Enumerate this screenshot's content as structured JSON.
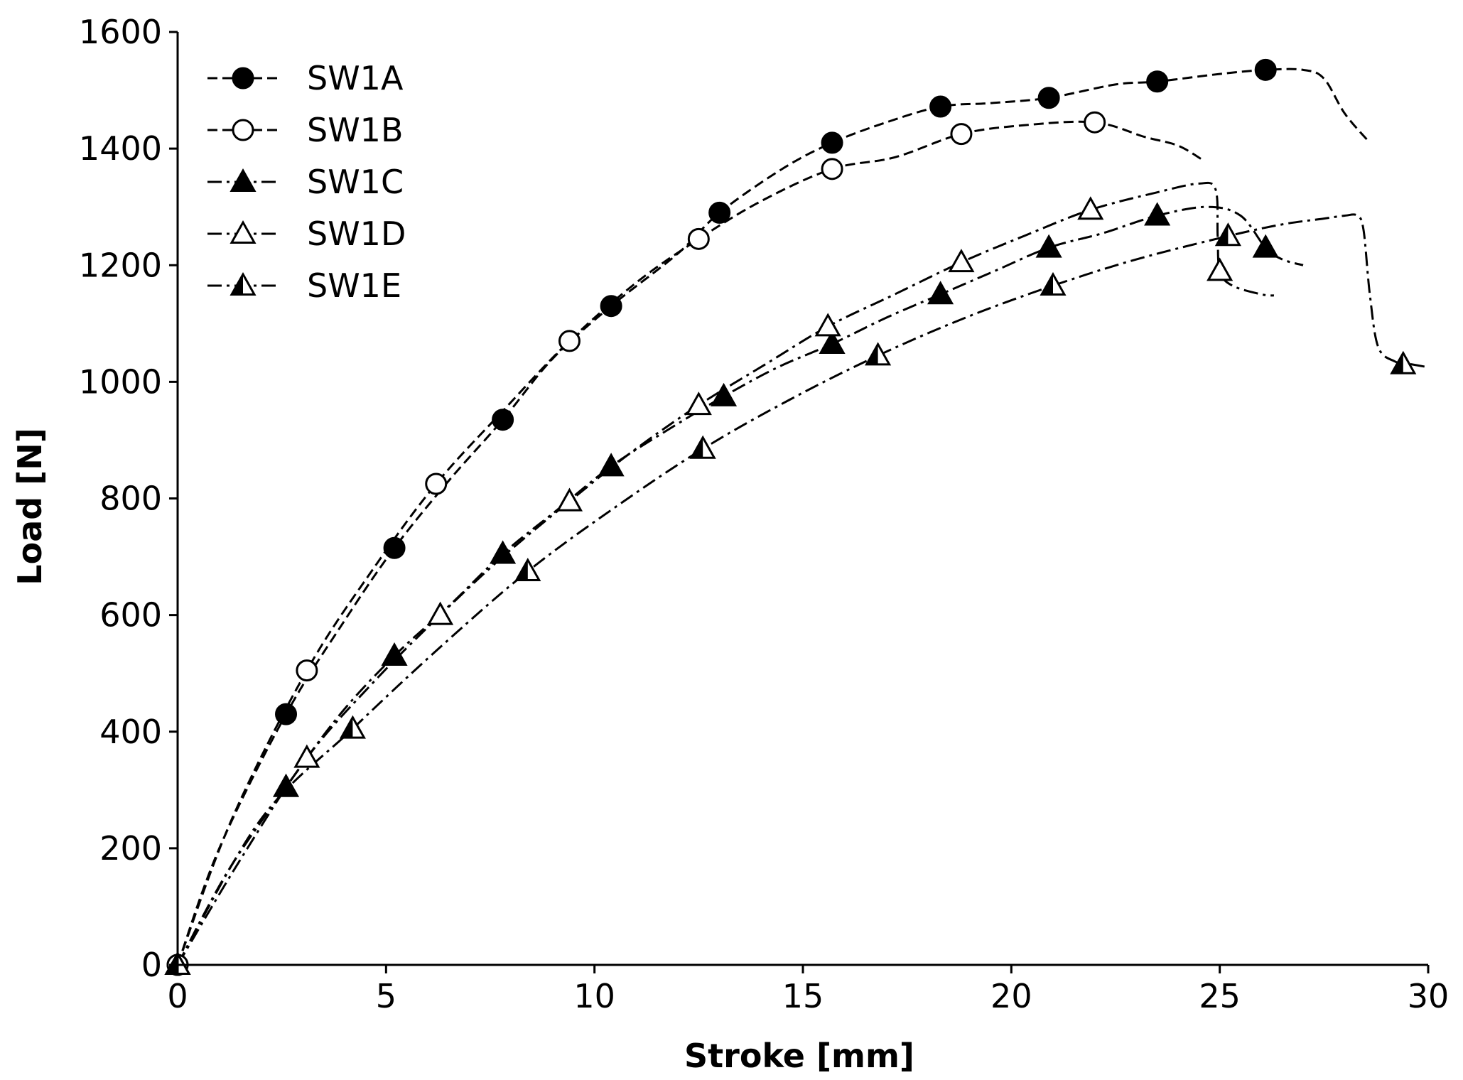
{
  "chart_data": {
    "type": "line",
    "title": "",
    "xlabel": "Stroke [mm]",
    "ylabel": "Load [N]",
    "xlim": [
      0,
      30
    ],
    "ylim": [
      0,
      1600
    ],
    "xticks": [
      0,
      5,
      10,
      15,
      20,
      25,
      30
    ],
    "yticks": [
      0,
      200,
      400,
      600,
      800,
      1000,
      1200,
      1400,
      1600
    ],
    "grid": false,
    "legend_position": "top-left",
    "series": [
      {
        "name": "SW1A",
        "marker": "filled-circle",
        "line_style": "dashed",
        "curve": [
          [
            0,
            0
          ],
          [
            1,
            200
          ],
          [
            2.6,
            430
          ],
          [
            4,
            590
          ],
          [
            5.2,
            715
          ],
          [
            6.5,
            830
          ],
          [
            7.8,
            935
          ],
          [
            9,
            1040
          ],
          [
            10.4,
            1130
          ],
          [
            12,
            1220
          ],
          [
            13,
            1290
          ],
          [
            14.5,
            1365
          ],
          [
            15.7,
            1410
          ],
          [
            17,
            1445
          ],
          [
            18.3,
            1472
          ],
          [
            19.5,
            1478
          ],
          [
            20.9,
            1487
          ],
          [
            22.5,
            1510
          ],
          [
            23.5,
            1515
          ],
          [
            25,
            1528
          ],
          [
            26.1,
            1535
          ],
          [
            27,
            1535
          ],
          [
            27.5,
            1520
          ],
          [
            28,
            1460
          ],
          [
            28.6,
            1410
          ]
        ],
        "markers": [
          [
            0,
            0
          ],
          [
            2.6,
            430
          ],
          [
            5.2,
            715
          ],
          [
            7.8,
            935
          ],
          [
            10.4,
            1130
          ],
          [
            13,
            1290
          ],
          [
            15.7,
            1410
          ],
          [
            18.3,
            1472
          ],
          [
            20.9,
            1487
          ],
          [
            23.5,
            1515
          ],
          [
            26.1,
            1535
          ]
        ]
      },
      {
        "name": "SW1B",
        "marker": "open-circle",
        "line_style": "dashed",
        "curve": [
          [
            0,
            0
          ],
          [
            1.3,
            250
          ],
          [
            3.1,
            505
          ],
          [
            4.7,
            680
          ],
          [
            6.2,
            825
          ],
          [
            7.8,
            950
          ],
          [
            9.4,
            1070
          ],
          [
            11,
            1170
          ],
          [
            12.5,
            1245
          ],
          [
            14,
            1310
          ],
          [
            15.7,
            1365
          ],
          [
            17.2,
            1385
          ],
          [
            18.8,
            1425
          ],
          [
            20.3,
            1440
          ],
          [
            22,
            1445
          ],
          [
            23.2,
            1420
          ],
          [
            24,
            1405
          ],
          [
            24.6,
            1380
          ]
        ],
        "markers": [
          [
            0,
            0
          ],
          [
            3.1,
            505
          ],
          [
            6.2,
            825
          ],
          [
            9.4,
            1070
          ],
          [
            12.5,
            1245
          ],
          [
            15.7,
            1365
          ],
          [
            18.8,
            1425
          ],
          [
            22,
            1445
          ]
        ]
      },
      {
        "name": "SW1C",
        "marker": "filled-triangle",
        "line_style": "dashdot",
        "curve": [
          [
            0,
            0
          ],
          [
            1.2,
            160
          ],
          [
            2.6,
            305
          ],
          [
            3.9,
            430
          ],
          [
            5.2,
            530
          ],
          [
            6.5,
            615
          ],
          [
            7.8,
            705
          ],
          [
            9.1,
            780
          ],
          [
            10.4,
            855
          ],
          [
            11.7,
            915
          ],
          [
            13.1,
            975
          ],
          [
            14.4,
            1025
          ],
          [
            15.7,
            1065
          ],
          [
            17,
            1110
          ],
          [
            18.3,
            1150
          ],
          [
            19.6,
            1190
          ],
          [
            20.9,
            1230
          ],
          [
            22.2,
            1255
          ],
          [
            23.5,
            1285
          ],
          [
            24.7,
            1300
          ],
          [
            25.5,
            1285
          ],
          [
            26.1,
            1230
          ],
          [
            26.5,
            1210
          ],
          [
            27,
            1200
          ]
        ],
        "markers": [
          [
            0,
            0
          ],
          [
            2.6,
            305
          ],
          [
            5.2,
            530
          ],
          [
            7.8,
            705
          ],
          [
            10.4,
            855
          ],
          [
            13.1,
            975
          ],
          [
            15.7,
            1065
          ],
          [
            18.3,
            1150
          ],
          [
            20.9,
            1230
          ],
          [
            23.5,
            1285
          ],
          [
            26.1,
            1230
          ]
        ]
      },
      {
        "name": "SW1D",
        "marker": "open-triangle",
        "line_style": "dashdot",
        "curve": [
          [
            0,
            0
          ],
          [
            1.5,
            180
          ],
          [
            3.1,
            355
          ],
          [
            4.7,
            485
          ],
          [
            6.3,
            600
          ],
          [
            7.8,
            700
          ],
          [
            9.4,
            795
          ],
          [
            10.9,
            880
          ],
          [
            12.5,
            960
          ],
          [
            14.1,
            1030
          ],
          [
            15.6,
            1095
          ],
          [
            17.2,
            1150
          ],
          [
            18.8,
            1205
          ],
          [
            20.3,
            1250
          ],
          [
            21.9,
            1295
          ],
          [
            23.5,
            1325
          ],
          [
            24.5,
            1340
          ],
          [
            24.9,
            1330
          ],
          [
            24.95,
            1250
          ],
          [
            25,
            1190
          ],
          [
            25.3,
            1165
          ],
          [
            26,
            1150
          ],
          [
            26.3,
            1148
          ]
        ],
        "markers": [
          [
            0,
            0
          ],
          [
            3.1,
            355
          ],
          [
            6.3,
            600
          ],
          [
            9.4,
            795
          ],
          [
            12.5,
            960
          ],
          [
            15.6,
            1095
          ],
          [
            18.8,
            1205
          ],
          [
            21.9,
            1295
          ],
          [
            25,
            1190
          ]
        ]
      },
      {
        "name": "SW1E",
        "marker": "half-filled-triangle",
        "line_style": "dashdot",
        "curve": [
          [
            0,
            0
          ],
          [
            2,
            250
          ],
          [
            4.2,
            405
          ],
          [
            6.3,
            545
          ],
          [
            8.4,
            675
          ],
          [
            10.5,
            785
          ],
          [
            12.6,
            885
          ],
          [
            14.7,
            970
          ],
          [
            16.8,
            1045
          ],
          [
            18.9,
            1110
          ],
          [
            21,
            1165
          ],
          [
            23,
            1210
          ],
          [
            25.2,
            1250
          ],
          [
            26.5,
            1270
          ],
          [
            27.5,
            1280
          ],
          [
            28,
            1285
          ],
          [
            28.3,
            1285
          ],
          [
            28.45,
            1260
          ],
          [
            28.6,
            1150
          ],
          [
            28.8,
            1060
          ],
          [
            29.2,
            1035
          ],
          [
            29.6,
            1030
          ],
          [
            30,
            1025
          ]
        ],
        "markers": [
          [
            0,
            0
          ],
          [
            4.2,
            405
          ],
          [
            8.4,
            675
          ],
          [
            12.6,
            885
          ],
          [
            16.8,
            1045
          ],
          [
            21,
            1165
          ],
          [
            25.2,
            1250
          ],
          [
            29.4,
            1030
          ]
        ]
      }
    ]
  }
}
